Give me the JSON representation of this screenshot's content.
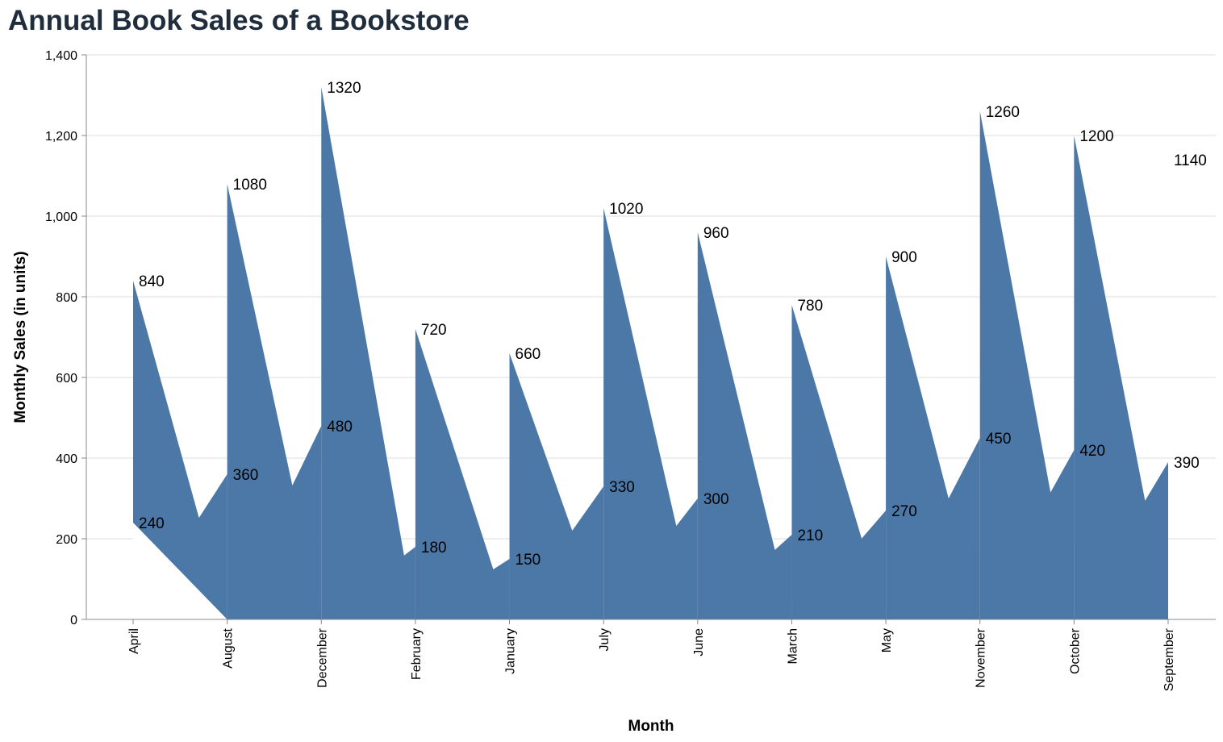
{
  "chart_data": {
    "type": "area",
    "title": "Annual Book Sales of a Bookstore",
    "xlabel": "Month",
    "ylabel": "Monthly Sales (in units)",
    "categories": [
      "April",
      "August",
      "December",
      "February",
      "January",
      "July",
      "June",
      "March",
      "May",
      "November",
      "October",
      "September"
    ],
    "ylim": [
      0,
      1400
    ],
    "yticks": [
      0,
      200,
      400,
      600,
      800,
      1000,
      1200,
      1400
    ],
    "ytick_labels": [
      "0",
      "200",
      "400",
      "600",
      "800",
      "1,000",
      "1,200",
      "1,400"
    ],
    "grid": true,
    "color": "#4c78a8",
    "series": [
      {
        "values": [
          240,
          360,
          480,
          180,
          150,
          330,
          300,
          210,
          270,
          450,
          420,
          390
        ]
      },
      {
        "values": [
          600,
          720,
          840,
          540,
          510,
          690,
          660,
          570,
          630,
          810,
          780,
          750
        ]
      }
    ]
  }
}
